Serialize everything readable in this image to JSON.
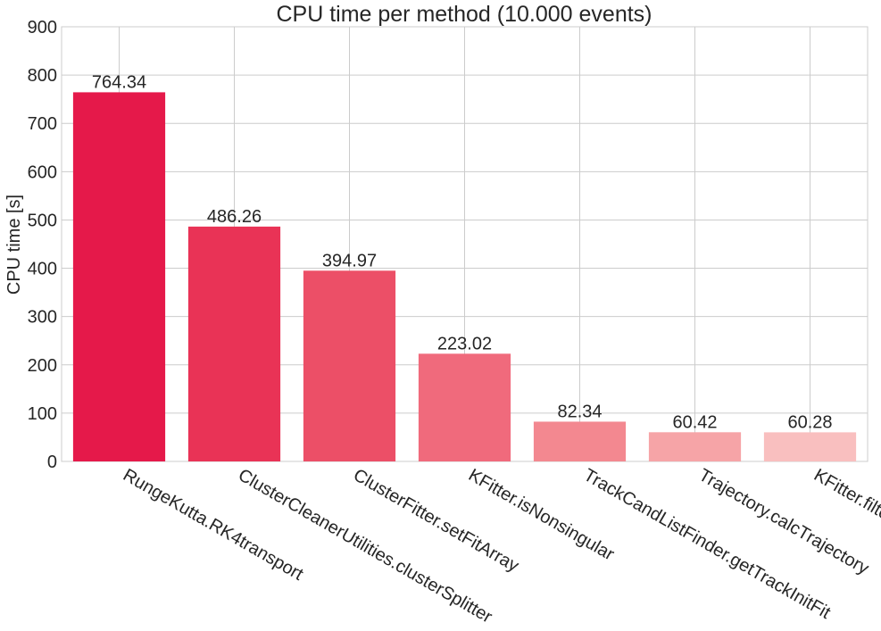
{
  "chart_data": {
    "type": "bar",
    "title": "CPU time per method (10.000 events)",
    "xlabel": "",
    "ylabel": "CPU time [s]",
    "ylim": [
      0,
      900
    ],
    "yticks": [
      0,
      100,
      200,
      300,
      400,
      500,
      600,
      700,
      800,
      900
    ],
    "grid": true,
    "categories": [
      "RungeKutta.RK4transport",
      "ClusterCleanerUtilities.clusterSplitter",
      "ClusterFitter.setFitArray",
      "KFitter.isNonsingular",
      "TrackCandListFinder.getTrackInitFit",
      "Trajectory.calcTrajectory",
      "KFitter.filter"
    ],
    "values": [
      764.34,
      486.26,
      394.97,
      223.02,
      82.34,
      60.42,
      60.28
    ],
    "data_labels": [
      "764.34",
      "486.26",
      "394.97",
      "223.02",
      "82.34",
      "60.42",
      "60.28"
    ],
    "colors": [
      "#e5194a",
      "#e93356",
      "#ec4f67",
      "#f06a7c",
      "#f38890",
      "#f6a4a7",
      "#f9bfbf"
    ]
  }
}
